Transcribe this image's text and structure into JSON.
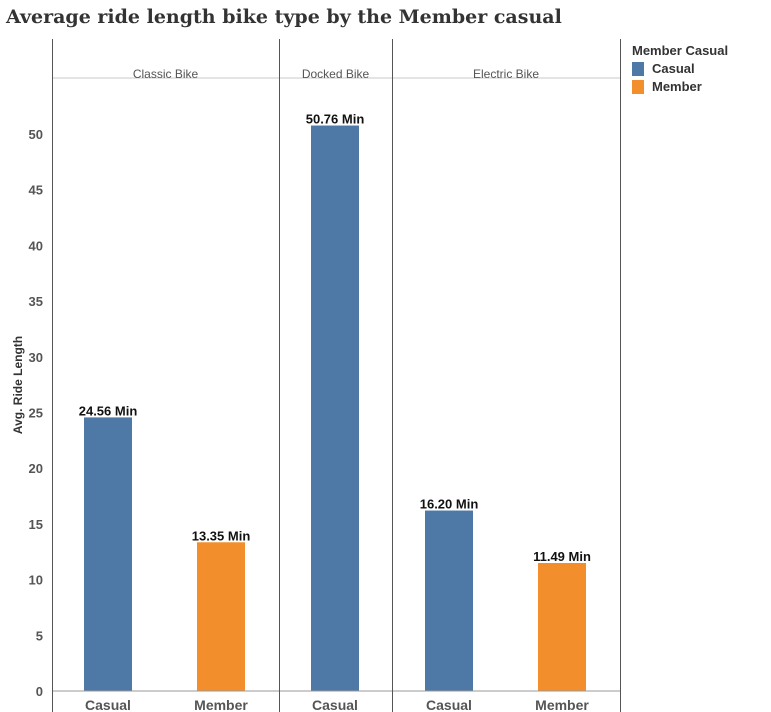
{
  "chart_data": {
    "type": "bar",
    "title": "Average ride length bike type by the Member casual",
    "ylabel": "Avg. Ride Length",
    "xlabel": "",
    "ylim": [
      0,
      55
    ],
    "yticks": [
      0,
      5,
      10,
      15,
      20,
      25,
      30,
      35,
      40,
      45,
      50
    ],
    "grid": false,
    "legend_position": "top-right",
    "legend_title": "Member Casual",
    "series_colors": {
      "Casual": "#4e79a7",
      "Member": "#f28e2b"
    },
    "legend": [
      {
        "name": "Casual",
        "color": "#4e79a7"
      },
      {
        "name": "Member",
        "color": "#f28e2b"
      }
    ],
    "panels": [
      {
        "label": "Classic Bike",
        "bars": [
          {
            "category": "Casual",
            "value": 24.56,
            "label": "24.56 Min"
          },
          {
            "category": "Member",
            "value": 13.35,
            "label": "13.35 Min"
          }
        ]
      },
      {
        "label": "Docked Bike",
        "bars": [
          {
            "category": "Casual",
            "value": 50.76,
            "label": "50.76 Min"
          }
        ]
      },
      {
        "label": "Electric Bike",
        "bars": [
          {
            "category": "Casual",
            "value": 16.2,
            "label": "16.20 Min"
          },
          {
            "category": "Member",
            "value": 11.49,
            "label": "11.49 Min"
          }
        ]
      }
    ]
  }
}
